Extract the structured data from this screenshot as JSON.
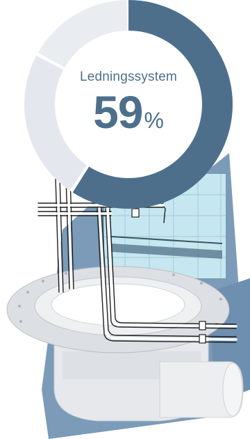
{
  "metric": {
    "label": "Ledningssystem",
    "value": "59",
    "unit": "%",
    "fraction": 0.59
  },
  "colors": {
    "filled": "#4d6f8c",
    "remaining": "#e4e8ee",
    "remaining_alt": "#e9ecf1",
    "text": "#4d6f8c",
    "backdrop_blue": "#7b9bb8",
    "tile": "#bfe4ec",
    "drain_body": "#e7e9ec"
  },
  "illustration": {
    "subject": "floor-drain-with-pipes"
  }
}
